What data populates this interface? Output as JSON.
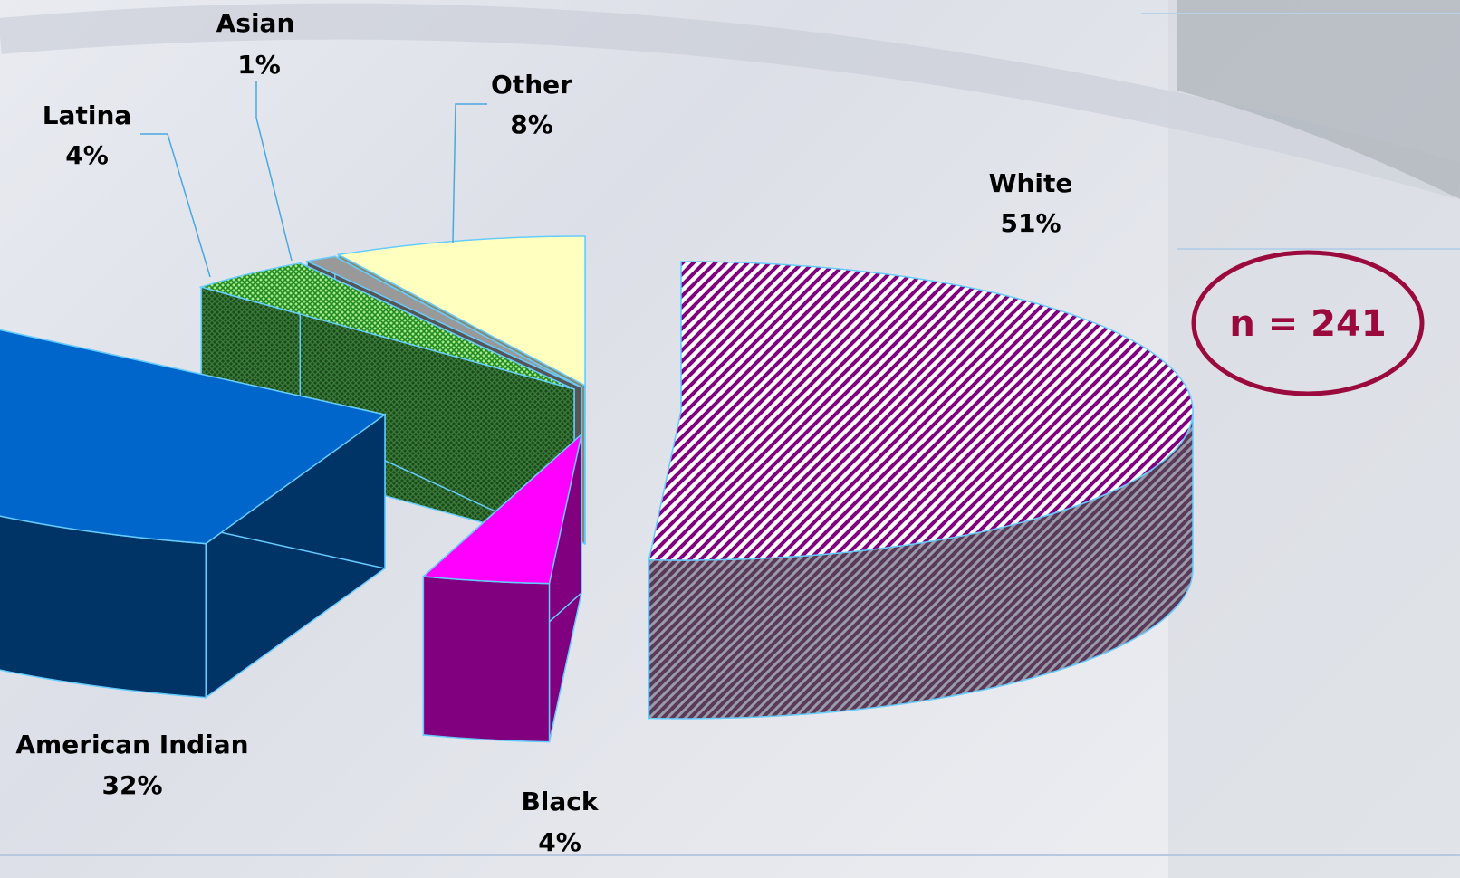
{
  "chart_data": {
    "type": "pie",
    "style": "3d-exploded",
    "slices": [
      {
        "label": "White",
        "value": 51,
        "value_label": "51%",
        "color": "#800080",
        "pattern": "diagonal-stripes"
      },
      {
        "label": "American Indian",
        "value": 32,
        "value_label": "32%",
        "color": "#0066cc"
      },
      {
        "label": "Black",
        "value": 4,
        "value_label": "4%",
        "color": "#ff00ff"
      },
      {
        "label": "Latina",
        "value": 4,
        "value_label": "4%",
        "color": "#33cc33",
        "pattern": "crosshatch"
      },
      {
        "label": "Asian",
        "value": 1,
        "value_label": "1%",
        "color": "#999999"
      },
      {
        "label": "Other",
        "value": 8,
        "value_label": "8%",
        "color": "#ffffc0"
      }
    ],
    "annotation": "n = 241",
    "annotation_color": "#9a0a3c"
  }
}
